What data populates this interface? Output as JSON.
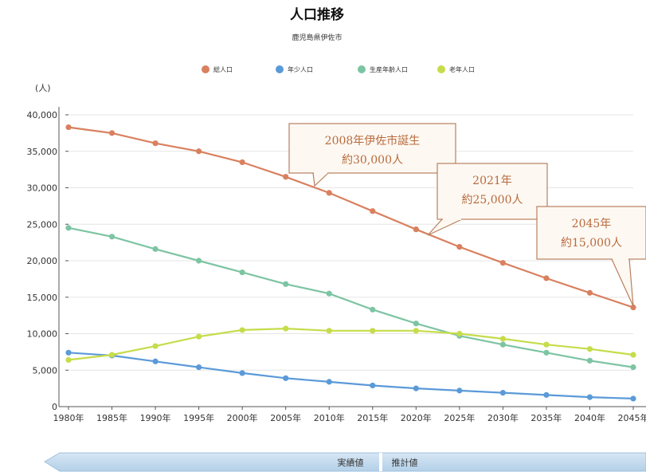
{
  "chart_data": {
    "type": "line",
    "title": "人口推移",
    "subtitle": "鹿児島県伊佐市",
    "y_unit": "(人)",
    "ylim": [
      0,
      40000
    ],
    "y_ticks": [
      "0",
      "5,000",
      "10,000",
      "15,000",
      "20,000",
      "25,000",
      "30,000",
      "35,000",
      "40,000"
    ],
    "y_tick_values": [
      0,
      5000,
      10000,
      15000,
      20000,
      25000,
      30000,
      35000,
      40000
    ],
    "x": [
      "1980年",
      "1985年",
      "1990年",
      "1995年",
      "2000年",
      "2005年",
      "2010年",
      "2015年",
      "2020年",
      "2025年",
      "2030年",
      "2035年",
      "2040年",
      "2045年"
    ],
    "legend_position": "top",
    "grid": "horizontal",
    "series": [
      {
        "name": "総人口",
        "color": "#d9805f",
        "values": [
          38300,
          37500,
          36100,
          35000,
          33500,
          31500,
          29300,
          26800,
          24300,
          21900,
          19700,
          17600,
          15600,
          13600
        ]
      },
      {
        "name": "年少人口",
        "color": "#5b9ad8",
        "values": [
          7400,
          7000,
          6200,
          5400,
          4600,
          3900,
          3400,
          2900,
          2500,
          2200,
          1900,
          1600,
          1300,
          1100
        ]
      },
      {
        "name": "生産年齢人口",
        "color": "#7dc4a3",
        "values": [
          24500,
          23300,
          21600,
          20000,
          18400,
          16800,
          15500,
          13300,
          11400,
          9700,
          8500,
          7400,
          6300,
          5400
        ]
      },
      {
        "name": "老年人口",
        "color": "#c6dc4a",
        "values": [
          6400,
          7100,
          8300,
          9600,
          10500,
          10700,
          10400,
          10400,
          10400,
          10000,
          9300,
          8500,
          7900,
          7100
        ]
      }
    ],
    "annotations": [
      {
        "lines": [
          "2008年伊佐市誕生",
          "約30,000人"
        ]
      },
      {
        "lines": [
          "2021年",
          "約25,000人"
        ]
      },
      {
        "lines": [
          "2045年",
          "約15,000人"
        ]
      }
    ],
    "period_labels": {
      "actual": "実績値",
      "estimate": "推計値"
    }
  }
}
